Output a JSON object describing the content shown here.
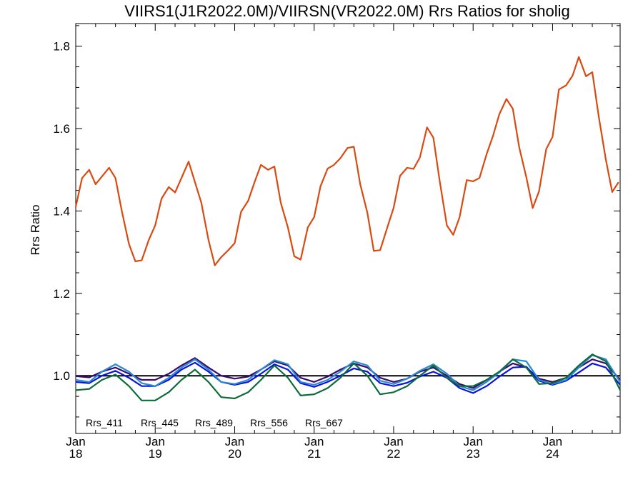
{
  "chart_data": {
    "type": "line",
    "title": "VIIRS1(J1R2022.0M)/VIIRSN(VR2022.0M)  Rrs Ratios for sholig",
    "ylabel": "Rrs Ratio",
    "xlabel": "",
    "xlim": [
      2018.0,
      2024.85
    ],
    "ylim": [
      0.86,
      1.855
    ],
    "yticks": [
      "1.0",
      "1.2",
      "1.4",
      "1.6",
      "1.8"
    ],
    "ytick_values": [
      1.0,
      1.2,
      1.4,
      1.6,
      1.8
    ],
    "xticks": [
      {
        "month": "Jan",
        "year": "18",
        "x": 2018.0
      },
      {
        "month": "Jan",
        "year": "19",
        "x": 2019.0
      },
      {
        "month": "Jan",
        "year": "20",
        "x": 2020.0
      },
      {
        "month": "Jan",
        "year": "21",
        "x": 2021.0
      },
      {
        "month": "Jan",
        "year": "22",
        "x": 2022.0
      },
      {
        "month": "Jan",
        "year": "23",
        "x": 2023.0
      },
      {
        "month": "Jan",
        "year": "24",
        "x": 2024.0
      }
    ],
    "reference_line": 1.0,
    "legend_position": "bottom-left",
    "series": [
      {
        "name": "Rrs_411",
        "color": "#3a0a6e",
        "points": [
          [
            2018.0,
            0.999
          ],
          [
            2018.17,
            0.996
          ],
          [
            2018.33,
            1.01
          ],
          [
            2018.5,
            1.02
          ],
          [
            2018.67,
            1.005
          ],
          [
            2018.83,
            0.99
          ],
          [
            2019.0,
            0.99
          ],
          [
            2019.17,
            1.005
          ],
          [
            2019.33,
            1.025
          ],
          [
            2019.5,
            1.043
          ],
          [
            2019.67,
            1.02
          ],
          [
            2019.83,
            1.0
          ],
          [
            2020.0,
            0.993
          ],
          [
            2020.17,
            0.998
          ],
          [
            2020.33,
            1.015
          ],
          [
            2020.5,
            1.035
          ],
          [
            2020.67,
            1.025
          ],
          [
            2020.83,
            0.995
          ],
          [
            2021.0,
            0.985
          ],
          [
            2021.17,
            0.998
          ],
          [
            2021.33,
            1.015
          ],
          [
            2021.5,
            1.03
          ],
          [
            2021.67,
            1.02
          ],
          [
            2021.83,
            0.995
          ],
          [
            2022.0,
            0.985
          ],
          [
            2022.17,
            0.993
          ],
          [
            2022.33,
            1.01
          ],
          [
            2022.5,
            1.02
          ],
          [
            2022.67,
            1.0
          ],
          [
            2022.83,
            0.98
          ],
          [
            2023.0,
            0.97
          ],
          [
            2023.17,
            0.99
          ],
          [
            2023.33,
            1.01
          ],
          [
            2023.5,
            1.03
          ],
          [
            2023.67,
            1.02
          ],
          [
            2023.83,
            0.993
          ],
          [
            2024.0,
            0.985
          ],
          [
            2024.17,
            0.995
          ],
          [
            2024.33,
            1.02
          ],
          [
            2024.5,
            1.04
          ],
          [
            2024.67,
            1.03
          ],
          [
            2024.85,
            0.99
          ]
        ]
      },
      {
        "name": "Rrs_445",
        "color": "#0a14e0",
        "points": [
          [
            2018.0,
            0.985
          ],
          [
            2018.17,
            0.982
          ],
          [
            2018.33,
            1.0
          ],
          [
            2018.5,
            1.012
          ],
          [
            2018.67,
            0.995
          ],
          [
            2018.83,
            0.975
          ],
          [
            2019.0,
            0.975
          ],
          [
            2019.17,
            0.99
          ],
          [
            2019.33,
            1.015
          ],
          [
            2019.5,
            1.032
          ],
          [
            2019.67,
            1.01
          ],
          [
            2019.83,
            0.985
          ],
          [
            2020.0,
            0.978
          ],
          [
            2020.17,
            0.985
          ],
          [
            2020.33,
            1.005
          ],
          [
            2020.5,
            1.028
          ],
          [
            2020.67,
            1.015
          ],
          [
            2020.83,
            0.982
          ],
          [
            2021.0,
            0.973
          ],
          [
            2021.17,
            0.985
          ],
          [
            2021.33,
            1.0
          ],
          [
            2021.5,
            1.018
          ],
          [
            2021.67,
            1.01
          ],
          [
            2021.83,
            0.982
          ],
          [
            2022.0,
            0.975
          ],
          [
            2022.17,
            0.983
          ],
          [
            2022.33,
            0.998
          ],
          [
            2022.5,
            1.01
          ],
          [
            2022.67,
            0.995
          ],
          [
            2022.83,
            0.97
          ],
          [
            2023.0,
            0.958
          ],
          [
            2023.17,
            0.975
          ],
          [
            2023.33,
            0.998
          ],
          [
            2023.5,
            1.02
          ],
          [
            2023.67,
            1.022
          ],
          [
            2023.83,
            0.988
          ],
          [
            2024.0,
            0.978
          ],
          [
            2024.17,
            0.988
          ],
          [
            2024.33,
            1.008
          ],
          [
            2024.5,
            1.03
          ],
          [
            2024.67,
            1.02
          ],
          [
            2024.85,
            0.978
          ]
        ]
      },
      {
        "name": "Rrs_489",
        "color": "#2a8ad0",
        "points": [
          [
            2018.0,
            0.99
          ],
          [
            2018.17,
            0.985
          ],
          [
            2018.33,
            1.01
          ],
          [
            2018.5,
            1.028
          ],
          [
            2018.67,
            1.01
          ],
          [
            2018.83,
            0.982
          ],
          [
            2019.0,
            0.975
          ],
          [
            2019.17,
            0.995
          ],
          [
            2019.33,
            1.02
          ],
          [
            2019.5,
            1.04
          ],
          [
            2019.67,
            1.015
          ],
          [
            2019.83,
            0.985
          ],
          [
            2020.0,
            0.98
          ],
          [
            2020.17,
            0.99
          ],
          [
            2020.33,
            1.015
          ],
          [
            2020.5,
            1.038
          ],
          [
            2020.67,
            1.028
          ],
          [
            2020.83,
            0.985
          ],
          [
            2021.0,
            0.978
          ],
          [
            2021.17,
            0.99
          ],
          [
            2021.33,
            1.01
          ],
          [
            2021.5,
            1.035
          ],
          [
            2021.67,
            1.025
          ],
          [
            2021.83,
            0.988
          ],
          [
            2022.0,
            0.98
          ],
          [
            2022.17,
            0.993
          ],
          [
            2022.33,
            1.012
          ],
          [
            2022.5,
            1.028
          ],
          [
            2022.67,
            1.005
          ],
          [
            2022.83,
            0.975
          ],
          [
            2023.0,
            0.965
          ],
          [
            2023.17,
            0.985
          ],
          [
            2023.33,
            1.008
          ],
          [
            2023.5,
            1.04
          ],
          [
            2023.67,
            1.035
          ],
          [
            2023.83,
            0.99
          ],
          [
            2024.0,
            0.98
          ],
          [
            2024.17,
            0.99
          ],
          [
            2024.33,
            1.02
          ],
          [
            2024.5,
            1.05
          ],
          [
            2024.67,
            1.04
          ],
          [
            2024.85,
            0.985
          ]
        ]
      },
      {
        "name": "Rrs_556",
        "color": "#0d6b3a",
        "points": [
          [
            2018.0,
            0.965
          ],
          [
            2018.17,
            0.968
          ],
          [
            2018.33,
            0.99
          ],
          [
            2018.5,
            1.003
          ],
          [
            2018.67,
            0.975
          ],
          [
            2018.83,
            0.94
          ],
          [
            2019.0,
            0.94
          ],
          [
            2019.17,
            0.96
          ],
          [
            2019.33,
            0.99
          ],
          [
            2019.5,
            1.015
          ],
          [
            2019.67,
            0.985
          ],
          [
            2019.83,
            0.948
          ],
          [
            2020.0,
            0.945
          ],
          [
            2020.17,
            0.96
          ],
          [
            2020.33,
            0.99
          ],
          [
            2020.5,
            1.025
          ],
          [
            2020.67,
            0.995
          ],
          [
            2020.83,
            0.952
          ],
          [
            2021.0,
            0.955
          ],
          [
            2021.17,
            0.97
          ],
          [
            2021.33,
            0.995
          ],
          [
            2021.5,
            1.03
          ],
          [
            2021.67,
            1.0
          ],
          [
            2021.83,
            0.955
          ],
          [
            2022.0,
            0.96
          ],
          [
            2022.17,
            0.975
          ],
          [
            2022.33,
            1.0
          ],
          [
            2022.5,
            1.025
          ],
          [
            2022.67,
            0.995
          ],
          [
            2022.83,
            0.975
          ],
          [
            2023.0,
            0.975
          ],
          [
            2023.17,
            0.99
          ],
          [
            2023.33,
            1.01
          ],
          [
            2023.5,
            1.04
          ],
          [
            2023.67,
            1.02
          ],
          [
            2023.83,
            0.98
          ],
          [
            2024.0,
            0.982
          ],
          [
            2024.17,
            0.995
          ],
          [
            2024.33,
            1.025
          ],
          [
            2024.5,
            1.052
          ],
          [
            2024.67,
            1.035
          ],
          [
            2024.85,
            0.965
          ]
        ]
      },
      {
        "name": "Rrs_667",
        "color": "#d94a12",
        "points": [
          [
            2018.0,
            1.41
          ],
          [
            2018.08,
            1.48
          ],
          [
            2018.17,
            1.5
          ],
          [
            2018.25,
            1.465
          ],
          [
            2018.42,
            1.505
          ],
          [
            2018.5,
            1.48
          ],
          [
            2018.58,
            1.4
          ],
          [
            2018.67,
            1.32
          ],
          [
            2018.75,
            1.278
          ],
          [
            2018.83,
            1.28
          ],
          [
            2018.92,
            1.33
          ],
          [
            2019.0,
            1.365
          ],
          [
            2019.08,
            1.43
          ],
          [
            2019.17,
            1.458
          ],
          [
            2019.25,
            1.445
          ],
          [
            2019.33,
            1.48
          ],
          [
            2019.42,
            1.52
          ],
          [
            2019.5,
            1.47
          ],
          [
            2019.58,
            1.42
          ],
          [
            2019.67,
            1.33
          ],
          [
            2019.75,
            1.268
          ],
          [
            2019.83,
            1.288
          ],
          [
            2019.92,
            1.305
          ],
          [
            2020.0,
            1.322
          ],
          [
            2020.08,
            1.398
          ],
          [
            2020.17,
            1.425
          ],
          [
            2020.25,
            1.47
          ],
          [
            2020.33,
            1.512
          ],
          [
            2020.42,
            1.5
          ],
          [
            2020.5,
            1.508
          ],
          [
            2020.58,
            1.42
          ],
          [
            2020.67,
            1.36
          ],
          [
            2020.75,
            1.29
          ],
          [
            2020.83,
            1.282
          ],
          [
            2020.92,
            1.36
          ],
          [
            2021.0,
            1.385
          ],
          [
            2021.08,
            1.46
          ],
          [
            2021.17,
            1.503
          ],
          [
            2021.25,
            1.512
          ],
          [
            2021.33,
            1.528
          ],
          [
            2021.42,
            1.553
          ],
          [
            2021.5,
            1.556
          ],
          [
            2021.58,
            1.465
          ],
          [
            2021.67,
            1.395
          ],
          [
            2021.75,
            1.303
          ],
          [
            2021.83,
            1.305
          ],
          [
            2021.92,
            1.36
          ],
          [
            2022.0,
            1.408
          ],
          [
            2022.08,
            1.485
          ],
          [
            2022.17,
            1.505
          ],
          [
            2022.25,
            1.502
          ],
          [
            2022.33,
            1.53
          ],
          [
            2022.42,
            1.603
          ],
          [
            2022.5,
            1.578
          ],
          [
            2022.58,
            1.472
          ],
          [
            2022.67,
            1.365
          ],
          [
            2022.75,
            1.342
          ],
          [
            2022.83,
            1.385
          ],
          [
            2022.92,
            1.475
          ],
          [
            2023.0,
            1.472
          ],
          [
            2023.08,
            1.48
          ],
          [
            2023.17,
            1.538
          ],
          [
            2023.25,
            1.582
          ],
          [
            2023.33,
            1.635
          ],
          [
            2023.42,
            1.672
          ],
          [
            2023.5,
            1.648
          ],
          [
            2023.58,
            1.555
          ],
          [
            2023.67,
            1.482
          ],
          [
            2023.75,
            1.407
          ],
          [
            2023.83,
            1.448
          ],
          [
            2023.92,
            1.55
          ],
          [
            2024.0,
            1.58
          ],
          [
            2024.08,
            1.695
          ],
          [
            2024.17,
            1.705
          ],
          [
            2024.25,
            1.728
          ],
          [
            2024.33,
            1.774
          ],
          [
            2024.42,
            1.727
          ],
          [
            2024.5,
            1.737
          ],
          [
            2024.58,
            1.63
          ],
          [
            2024.67,
            1.525
          ],
          [
            2024.75,
            1.446
          ],
          [
            2024.83,
            1.47
          ]
        ]
      }
    ]
  }
}
